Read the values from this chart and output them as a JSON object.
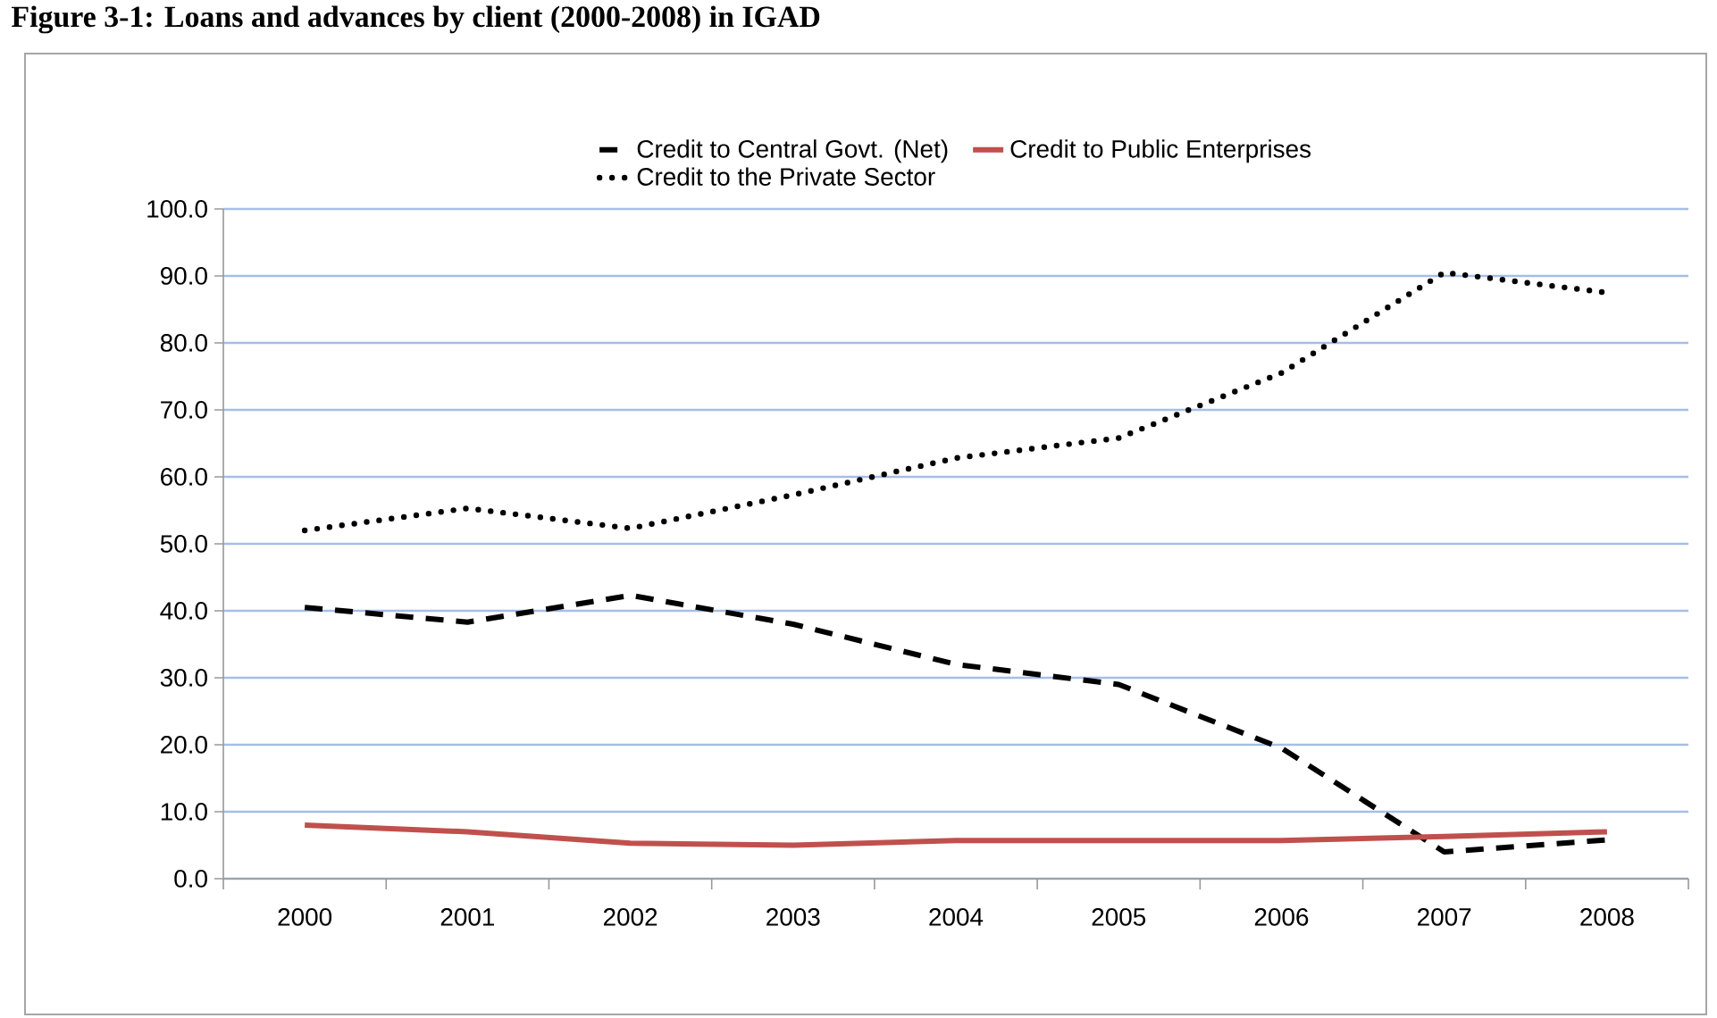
{
  "chart_data": {
    "type": "line",
    "title": "Figure 3-1: Loans and advances by client (2000-2008) in IGAD",
    "categories": [
      "2000",
      "2001",
      "2002",
      "2003",
      "2004",
      "2005",
      "2006",
      "2007",
      "2008"
    ],
    "series": [
      {
        "name": "Credit to Central Govt. (Net)",
        "color": "#000000",
        "line_style": "dashed",
        "values": [
          40.5,
          38.3,
          42.3,
          38.0,
          32.0,
          29.0,
          19.5,
          4.0,
          5.8
        ]
      },
      {
        "name": "Credit to Public Enterprises",
        "color": "#c0504d",
        "line_style": "solid",
        "values": [
          8.0,
          7.0,
          5.3,
          5.0,
          5.7,
          5.7,
          5.7,
          6.3,
          7.0
        ]
      },
      {
        "name": "Credit to the Private Sector",
        "color": "#000000",
        "line_style": "dotted",
        "values": [
          52.0,
          55.3,
          52.3,
          57.3,
          62.8,
          65.8,
          75.5,
          90.5,
          87.5
        ]
      }
    ],
    "ylim": [
      0,
      100
    ],
    "yticks": [
      {
        "value": 0,
        "label": "0.0"
      },
      {
        "value": 10,
        "label": "10.0"
      },
      {
        "value": 20,
        "label": "20.0"
      },
      {
        "value": 30,
        "label": "30.0"
      },
      {
        "value": 40,
        "label": "40.0"
      },
      {
        "value": 50,
        "label": "50.0"
      },
      {
        "value": 60,
        "label": "60.0"
      },
      {
        "value": 70,
        "label": "70.0"
      },
      {
        "value": 80,
        "label": "80.0"
      },
      {
        "value": 90,
        "label": "90.0"
      },
      {
        "value": 100,
        "label": "100.0"
      }
    ],
    "grid": "y",
    "legend": "top",
    "marker": "none"
  }
}
